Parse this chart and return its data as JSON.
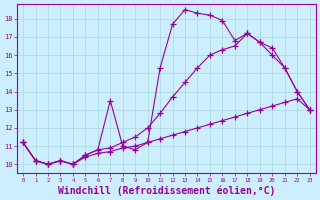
{
  "xlabel": "Windchill (Refroidissement éolien,°C)",
  "xlabel_fontsize": 7,
  "bg_color": "#cceeff",
  "line_color": "#990099",
  "xlim": [
    -0.5,
    23.5
  ],
  "ylim": [
    9.5,
    18.8
  ],
  "yticks": [
    10,
    11,
    12,
    13,
    14,
    15,
    16,
    17,
    18
  ],
  "xticks": [
    0,
    1,
    2,
    3,
    4,
    5,
    6,
    7,
    8,
    9,
    10,
    11,
    12,
    13,
    14,
    15,
    16,
    17,
    18,
    19,
    20,
    21,
    22,
    23
  ],
  "curve1_x": [
    0,
    1,
    2,
    3,
    4,
    5,
    6,
    7,
    8,
    9,
    10,
    11,
    12,
    13,
    14,
    15,
    16,
    17,
    18,
    19,
    20,
    21,
    22,
    23
  ],
  "curve1_y": [
    11.2,
    10.2,
    10.0,
    10.2,
    10.0,
    10.5,
    10.8,
    13.5,
    11.0,
    10.8,
    11.2,
    15.3,
    17.7,
    18.5,
    18.3,
    18.2,
    17.9,
    16.8,
    17.2,
    16.7,
    16.0,
    15.3,
    14.0,
    13.0
  ],
  "curve2_x": [
    0,
    1,
    2,
    3,
    4,
    5,
    6,
    7,
    8,
    9,
    10,
    11,
    12,
    13,
    14,
    15,
    16,
    17,
    18,
    19,
    20,
    21,
    22,
    23
  ],
  "curve2_y": [
    11.2,
    10.2,
    10.0,
    10.2,
    10.0,
    10.5,
    10.8,
    10.9,
    11.2,
    11.5,
    12.0,
    12.8,
    13.7,
    14.5,
    15.3,
    16.0,
    16.3,
    16.5,
    17.2,
    16.7,
    16.4,
    15.3,
    14.0,
    13.0
  ],
  "curve3_x": [
    0,
    1,
    2,
    3,
    4,
    5,
    6,
    7,
    8,
    9,
    10,
    11,
    12,
    13,
    14,
    15,
    16,
    17,
    18,
    19,
    20,
    21,
    22,
    23
  ],
  "curve3_y": [
    11.2,
    10.2,
    10.0,
    10.2,
    10.0,
    10.4,
    10.6,
    10.7,
    10.9,
    11.0,
    11.2,
    11.4,
    11.6,
    11.8,
    12.0,
    12.2,
    12.4,
    12.6,
    12.8,
    13.0,
    13.2,
    13.4,
    13.6,
    13.0
  ]
}
